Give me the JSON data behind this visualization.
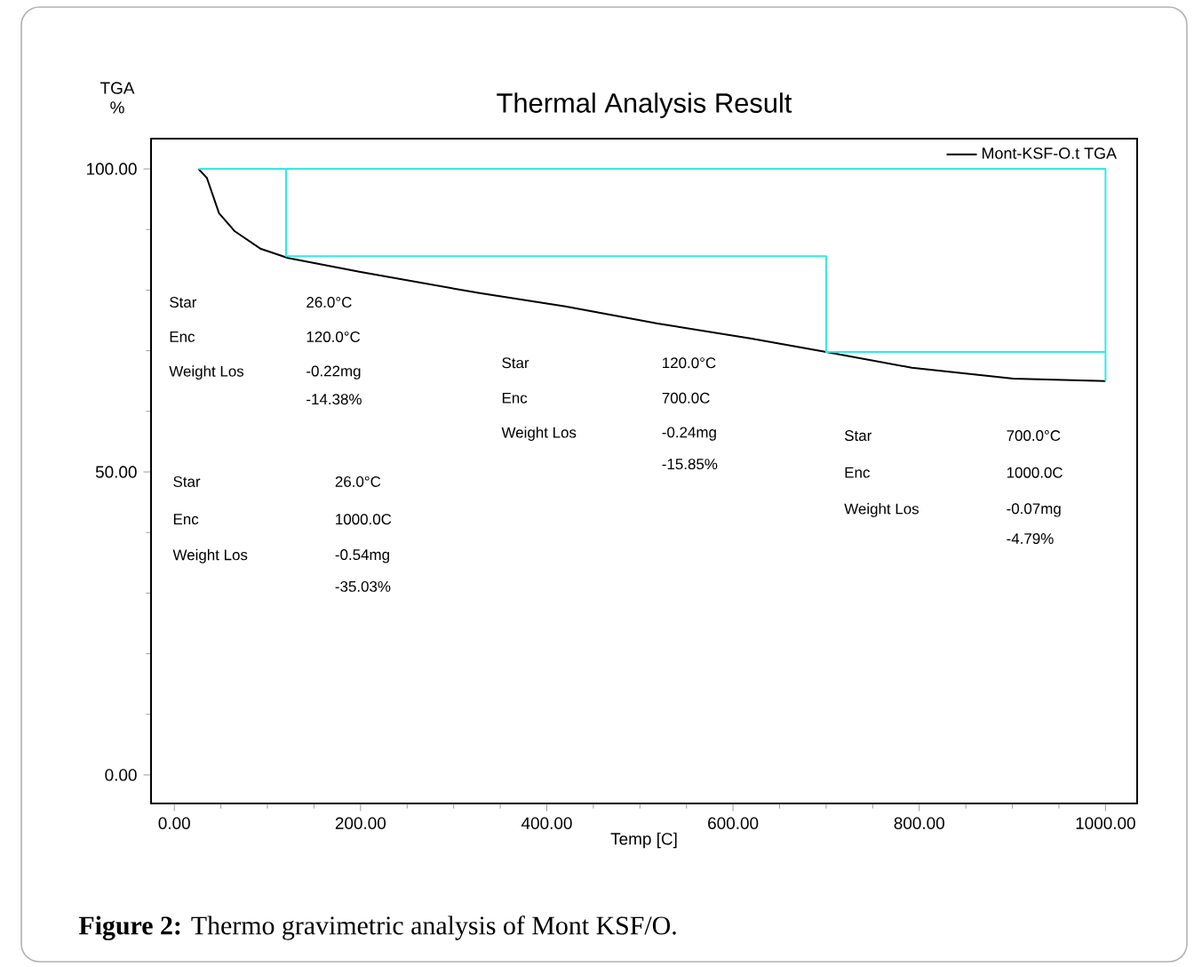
{
  "chart_data": {
    "type": "line",
    "title": "Thermal Analysis Result",
    "xlabel": "Temp   [C]",
    "ylabel": "TGA %",
    "xlim": [
      -25,
      1034
    ],
    "ylim": [
      -4.7,
      105
    ],
    "xticks": [
      {
        "value": 0,
        "label": "0.00"
      },
      {
        "value": 200,
        "label": "200.00"
      },
      {
        "value": 400,
        "label": "400.00"
      },
      {
        "value": 600,
        "label": "600.00"
      },
      {
        "value": 800,
        "label": "800.00"
      },
      {
        "value": 1000,
        "label": "1000.00"
      }
    ],
    "yticks": [
      {
        "value": 0,
        "label": "0.00"
      },
      {
        "value": 50,
        "label": "50.00"
      },
      {
        "value": 100,
        "label": "100.00"
      }
    ],
    "grid": false,
    "legend": "top right",
    "marker": "none",
    "line_style": "solid",
    "series": [
      {
        "name": "Mont-KSF-O.t TGA",
        "color": "#000000",
        "x": [
          26,
          35,
          48,
          65,
          93,
          122,
          200,
          328,
          420,
          519,
          620,
          700,
          792,
          901,
          1000
        ],
        "values": [
          100,
          98.5,
          92.7,
          89.7,
          86.8,
          85.3,
          83.0,
          79.5,
          77.3,
          74.5,
          72.0,
          69.8,
          67.2,
          65.4,
          65.0
        ]
      },
      {
        "color": "#33e8e8",
        "x": [
          26,
          1000,
          1000
        ],
        "values": [
          100,
          100,
          65.0
        ]
      },
      {
        "color": "#33e8e8",
        "x": [
          120,
          120,
          700,
          700,
          1000
        ],
        "values": [
          100,
          85.6,
          85.6,
          69.8,
          69.8
        ]
      }
    ],
    "annotations": [
      "Star",
      "Enc",
      "Weight Los",
      "26.0°C",
      "120.0°C",
      "-0.22mg",
      "-14.38%",
      "Star",
      "Enc",
      "Weight Los",
      "26.0°C",
      "1000.0C",
      "-0.54mg",
      "-35.03%",
      "Star",
      "Enc",
      "Weight Los",
      "120.0°C",
      "700.0C",
      "-0.24mg",
      "-15.85%",
      "Star",
      "Enc",
      "Weight Los",
      "700.0°C",
      "1000.0C",
      "-0.07mg",
      "-4.79%",
      "**Figure 2:** Thermo gravimetric analysis of Mont KSF/O."
    ]
  }
}
